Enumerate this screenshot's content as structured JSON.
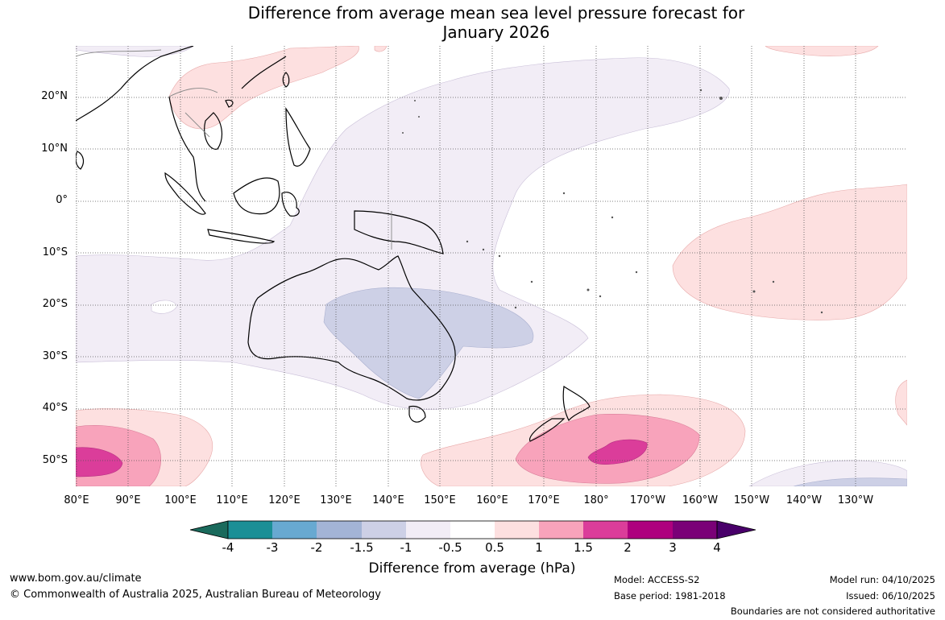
{
  "title": {
    "line1": "Difference from average mean sea level pressure forecast for",
    "line2": "January 2026"
  },
  "map": {
    "lat_labels": [
      "20°N",
      "10°N",
      "0°",
      "10°S",
      "20°S",
      "30°S",
      "40°S",
      "50°S"
    ],
    "lon_labels": [
      "80°E",
      "90°E",
      "100°E",
      "110°E",
      "120°E",
      "130°E",
      "140°E",
      "150°E",
      "160°E",
      "170°E",
      "180°",
      "170°W",
      "160°W",
      "150°W",
      "140°W",
      "130°W"
    ],
    "ocean_color": "#ffffff",
    "grid": "dotted"
  },
  "colorbar": {
    "ticks": [
      "-4",
      "-3",
      "-2",
      "-1.5",
      "-1",
      "-0.5",
      "0.5",
      "1",
      "1.5",
      "2",
      "3",
      "4"
    ],
    "colors": [
      "#1a6a5c",
      "#1b8f96",
      "#68a9d1",
      "#a3b4d6",
      "#cdd0e6",
      "#f2edf6",
      "#ffffff",
      "#fde0e0",
      "#f8a3bb",
      "#db3d9a",
      "#ae017e",
      "#7a0177",
      "#49006a"
    ],
    "label": "Difference from average (hPa)"
  },
  "footer": {
    "website": "www.bom.gov.au/climate",
    "copyright": "© Commonwealth of Australia 2025, Australian Bureau of Meteorology",
    "model": "Model: ACCESS-S2",
    "base_period": "Base period: 1981-2018",
    "model_run": "Model run: 04/10/2025",
    "issued": "Issued: 06/10/2025",
    "disclaimer": "Boundaries are not considered authoritative"
  }
}
